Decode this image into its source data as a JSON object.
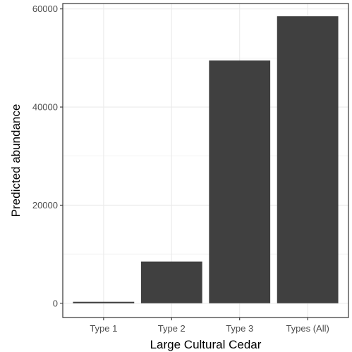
{
  "chart_data": {
    "type": "bar",
    "xlabel": "Large Cultural Cedar",
    "ylabel": "Predicted abundance",
    "categories": [
      "Type 1",
      "Type 2",
      "Type 3",
      "Types (All)"
    ],
    "values": [
      300,
      8500,
      49500,
      58500
    ],
    "ylim": [
      -2900,
      61100
    ],
    "yticks": [
      0,
      20000,
      40000,
      60000
    ],
    "ytick_labels": [
      "0",
      "20000",
      "40000",
      "60000"
    ],
    "grid": true,
    "bar_color": "#404040",
    "grid_color": "#ebebeb",
    "panel_border_color": "#333333"
  }
}
